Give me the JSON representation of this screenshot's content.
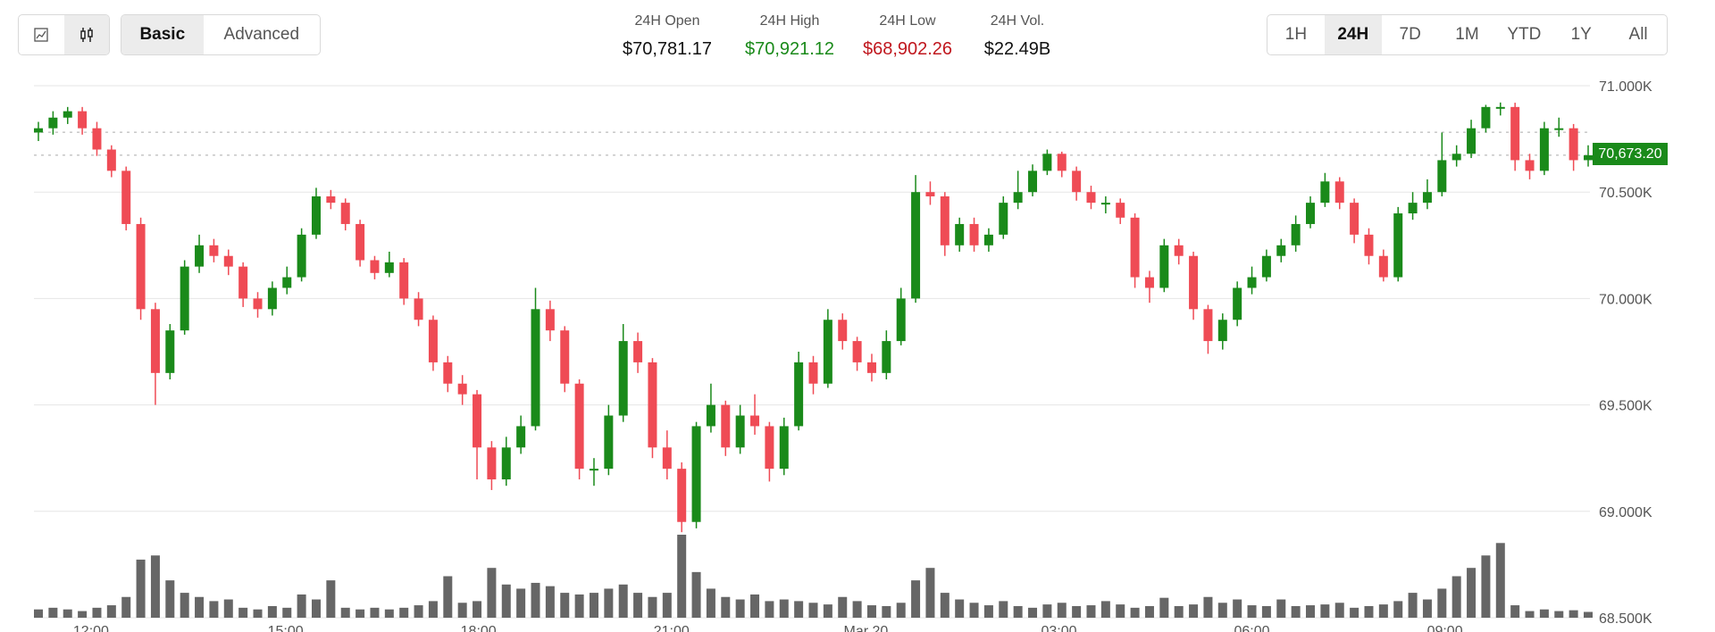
{
  "toolbar": {
    "chart_types": [
      {
        "icon": "line-chart-icon",
        "active": false
      },
      {
        "icon": "candlestick-icon",
        "active": true
      }
    ],
    "modes": [
      {
        "label": "Basic",
        "active": true
      },
      {
        "label": "Advanced",
        "active": false
      }
    ],
    "timeframes": [
      {
        "label": "1H",
        "active": false
      },
      {
        "label": "24H",
        "active": true
      },
      {
        "label": "7D",
        "active": false
      },
      {
        "label": "1M",
        "active": false
      },
      {
        "label": "YTD",
        "active": false
      },
      {
        "label": "1Y",
        "active": false
      },
      {
        "label": "All",
        "active": false
      }
    ]
  },
  "stats": [
    {
      "label": "24H Open",
      "value": "$70,781.17",
      "color": "#111111"
    },
    {
      "label": "24H High",
      "value": "$70,921.12",
      "color": "#1a8a1a"
    },
    {
      "label": "24H Low",
      "value": "$68,902.26",
      "color": "#c0171e"
    },
    {
      "label": "24H Vol.",
      "value": "$22.49B",
      "color": "#111111"
    }
  ],
  "current_price_label": "70,673.20",
  "colors": {
    "up": "#1a8a1a",
    "down": "#ef4b55",
    "volume": "#666666",
    "grid": "#e6e6e6"
  },
  "chart_data": {
    "type": "candlestick",
    "ylim": [
      68500,
      71000
    ],
    "y_ticks": [
      71000,
      70500,
      70000,
      69500,
      69000,
      68500
    ],
    "y_tick_labels": [
      "71.000K",
      "70.500K",
      "70.000K",
      "69.500K",
      "69.000K",
      "68.500K"
    ],
    "reference_lines": [
      {
        "value": 70781.17,
        "style": "dashed"
      },
      {
        "value": 70673.2,
        "style": "dashed"
      }
    ],
    "x_ticks": [
      {
        "label": "12:00",
        "index": 3.6
      },
      {
        "label": "15:00",
        "index": 16.9
      },
      {
        "label": "18:00",
        "index": 30.1
      },
      {
        "label": "21:00",
        "index": 43.3
      },
      {
        "label": "Mar 20",
        "index": 56.6
      },
      {
        "label": "03:00",
        "index": 69.8
      },
      {
        "label": "06:00",
        "index": 83.0
      },
      {
        "label": "09:00",
        "index": 96.2
      }
    ],
    "open": [
      70780,
      70800,
      70850,
      70880,
      70800,
      70700,
      70600,
      70350,
      69950,
      69650,
      69850,
      70150,
      70250,
      70200,
      70150,
      70000,
      69950,
      70050,
      70100,
      70300,
      70480,
      70450,
      70350,
      70180,
      70120,
      70170,
      70000,
      69900,
      69700,
      69600,
      69550,
      69300,
      69150,
      69300,
      69400,
      69950,
      69850,
      69600,
      69200,
      69200,
      69450,
      69800,
      69700,
      69300,
      69200,
      68950,
      69400,
      69500,
      69300,
      69450,
      69400,
      69200,
      69400,
      69700,
      69600,
      69900,
      69800,
      69700,
      69650,
      69800,
      70000,
      70500,
      70480,
      70250,
      70350,
      70250,
      70300,
      70450,
      70500,
      70600,
      70680,
      70600,
      70500,
      70450,
      70450,
      70380,
      70100,
      70050,
      70250,
      70200,
      69950,
      69800,
      69900,
      70050,
      70100,
      70200,
      70250,
      70350,
      70450,
      70550,
      70450,
      70300,
      70200,
      70100,
      70400,
      70450,
      70500,
      70650,
      70680,
      70800,
      70900,
      70900,
      70650,
      70600,
      70800,
      70800,
      70650
    ],
    "high": [
      70830,
      70880,
      70900,
      70900,
      70830,
      70720,
      70620,
      70380,
      69980,
      69880,
      70180,
      70300,
      70280,
      70230,
      70170,
      70030,
      70080,
      70150,
      70330,
      70520,
      70510,
      70470,
      70370,
      70200,
      70220,
      70190,
      70030,
      69920,
      69730,
      69640,
      69570,
      69330,
      69350,
      69450,
      70050,
      69990,
      69870,
      69620,
      69250,
      69500,
      69880,
      69840,
      69720,
      69380,
      69230,
      69420,
      69600,
      69520,
      69500,
      69550,
      69420,
      69440,
      69750,
      69730,
      69950,
      69930,
      69820,
      69740,
      69850,
      70050,
      70580,
      70550,
      70500,
      70380,
      70380,
      70330,
      70480,
      70600,
      70630,
      70700,
      70690,
      70620,
      70530,
      70480,
      70470,
      70400,
      70130,
      70280,
      70280,
      70220,
      69970,
      69930,
      70080,
      70150,
      70230,
      70280,
      70390,
      70480,
      70590,
      70570,
      70470,
      70330,
      70230,
      70430,
      70500,
      70560,
      70780,
      70720,
      70840,
      70910,
      70921,
      70920,
      70680,
      70830,
      70850,
      70820,
      70720
    ],
    "low": [
      70740,
      70770,
      70820,
      70770,
      70670,
      70570,
      70320,
      69900,
      69500,
      69620,
      69830,
      70120,
      70170,
      70110,
      69960,
      69910,
      69920,
      70020,
      70080,
      70280,
      70420,
      70320,
      70150,
      70090,
      70100,
      69970,
      69870,
      69660,
      69560,
      69500,
      69150,
      69100,
      69120,
      69270,
      69380,
      69800,
      69560,
      69150,
      69120,
      69170,
      69420,
      69650,
      69250,
      69150,
      68902,
      68920,
      69370,
      69260,
      69270,
      69360,
      69140,
      69170,
      69380,
      69550,
      69580,
      69760,
      69660,
      69610,
      69620,
      69780,
      69980,
      70440,
      70200,
      70220,
      70220,
      70220,
      70280,
      70420,
      70480,
      70580,
      70570,
      70460,
      70420,
      70400,
      70350,
      70050,
      69980,
      70030,
      70160,
      69900,
      69740,
      69760,
      69870,
      70020,
      70080,
      70170,
      70220,
      70330,
      70430,
      70420,
      70260,
      70160,
      70080,
      70080,
      70370,
      70420,
      70480,
      70620,
      70660,
      70780,
      70860,
      70600,
      70560,
      70580,
      70760,
      70600,
      70620
    ],
    "close": [
      70800,
      70850,
      70880,
      70800,
      70700,
      70600,
      70350,
      69950,
      69650,
      69850,
      70150,
      70250,
      70200,
      70150,
      70000,
      69950,
      70050,
      70100,
      70300,
      70480,
      70450,
      70350,
      70180,
      70120,
      70170,
      70000,
      69900,
      69700,
      69600,
      69550,
      69300,
      69150,
      69300,
      69400,
      69950,
      69850,
      69600,
      69200,
      69200,
      69450,
      69800,
      69700,
      69300,
      69200,
      68950,
      69400,
      69500,
      69300,
      69450,
      69400,
      69200,
      69400,
      69700,
      69600,
      69900,
      69800,
      69700,
      69650,
      69800,
      70000,
      70500,
      70480,
      70250,
      70350,
      70250,
      70300,
      70450,
      70500,
      70600,
      70680,
      70600,
      70500,
      70450,
      70450,
      70380,
      70100,
      70050,
      70250,
      70200,
      69950,
      69800,
      69900,
      70050,
      70100,
      70200,
      70250,
      70350,
      70450,
      70550,
      70450,
      70300,
      70200,
      70100,
      70400,
      70450,
      70500,
      70650,
      70680,
      70800,
      70900,
      70900,
      70650,
      70600,
      70800,
      70800,
      70650,
      70673.2
    ],
    "volume_relative": [
      10,
      12,
      10,
      8,
      12,
      15,
      25,
      70,
      75,
      45,
      30,
      25,
      20,
      22,
      12,
      10,
      14,
      12,
      28,
      22,
      45,
      12,
      10,
      12,
      10,
      12,
      15,
      20,
      50,
      18,
      20,
      60,
      40,
      35,
      42,
      38,
      30,
      28,
      30,
      35,
      40,
      30,
      25,
      30,
      100,
      55,
      35,
      25,
      22,
      28,
      20,
      22,
      20,
      18,
      16,
      25,
      20,
      15,
      14,
      18,
      45,
      60,
      30,
      22,
      18,
      15,
      20,
      14,
      12,
      16,
      18,
      14,
      15,
      20,
      16,
      12,
      14,
      24,
      14,
      16,
      25,
      18,
      22,
      15,
      14,
      22,
      14,
      15,
      16,
      18,
      12,
      14,
      16,
      20,
      30,
      22,
      35,
      50,
      60,
      75,
      90,
      15,
      8,
      10,
      8,
      9,
      7
    ]
  }
}
